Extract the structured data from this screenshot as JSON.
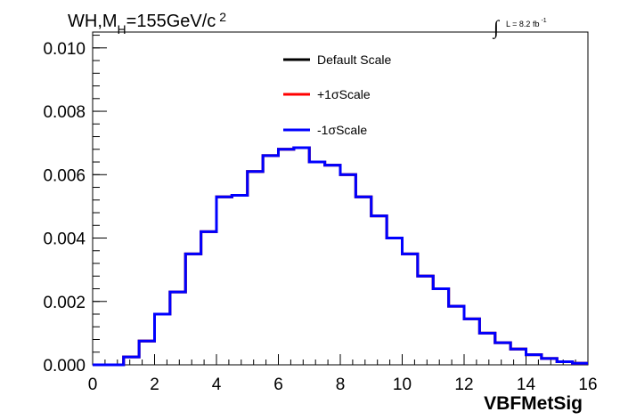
{
  "chart_data": {
    "type": "line",
    "title_parts": {
      "wh": "WH,M",
      "sub": "H",
      "mass": "=155GeV/c",
      "sup": "2"
    },
    "lumi_parts": {
      "integral": "∫",
      "text": "L = 8.2 fb",
      "sup": "-1"
    },
    "xlabel": "VBFMetSig",
    "ylabel": "",
    "xlim": [
      0,
      16
    ],
    "ylim": [
      0,
      0.0105
    ],
    "x_ticks": [
      "0",
      "2",
      "4",
      "6",
      "8",
      "10",
      "12",
      "14",
      "16"
    ],
    "y_ticks": [
      "0.000",
      "0.002",
      "0.004",
      "0.006",
      "0.008",
      "0.010"
    ],
    "grid": false,
    "legend_position": "top-center",
    "bin_edges": [
      0,
      0.5,
      1,
      1.5,
      2,
      2.5,
      3,
      3.5,
      4,
      4.5,
      5,
      5.5,
      6,
      6.5,
      7,
      7.5,
      8,
      8.5,
      9,
      9.5,
      10,
      10.5,
      11,
      11.5,
      12,
      12.5,
      13,
      13.5,
      14,
      14.5,
      15,
      15.5,
      16
    ],
    "bin_edges_note": "",
    "series": [
      {
        "name": "Default Scale",
        "color": "#000000",
        "values": [
          0,
          0,
          0.00025,
          0.00075,
          0.0016,
          0.0023,
          0.0035,
          0.0042,
          0.0053,
          0.00535,
          0.0061,
          0.0066,
          0.0068,
          0.00685,
          0.0064,
          0.0063,
          0.006,
          0.0053,
          0.0047,
          0.004,
          0.0035,
          0.0028,
          0.0024,
          0.00185,
          0.00145,
          0.001,
          0.0007,
          0.0005,
          0.00032,
          0.0002,
          0.0001,
          5e-05
        ]
      },
      {
        "name": "+1σScale",
        "color": "#ff0000",
        "values": [
          0,
          0,
          0.00025,
          0.00075,
          0.0016,
          0.0023,
          0.0035,
          0.0042,
          0.0053,
          0.00535,
          0.0061,
          0.0066,
          0.0068,
          0.00685,
          0.0064,
          0.0063,
          0.006,
          0.0053,
          0.0047,
          0.004,
          0.0035,
          0.0028,
          0.0024,
          0.00185,
          0.00145,
          0.001,
          0.0007,
          0.0005,
          0.00032,
          0.0002,
          0.0001,
          5e-05
        ]
      },
      {
        "name": "-1σScale",
        "color": "#0000ff",
        "values": [
          0,
          0,
          0.00025,
          0.00075,
          0.0016,
          0.0023,
          0.0035,
          0.0042,
          0.0053,
          0.00535,
          0.0061,
          0.0066,
          0.0068,
          0.00685,
          0.0064,
          0.0063,
          0.006,
          0.0053,
          0.0047,
          0.004,
          0.0035,
          0.0028,
          0.0024,
          0.00185,
          0.00145,
          0.001,
          0.0007,
          0.0005,
          0.00032,
          0.0002,
          0.0001,
          5e-05
        ]
      }
    ]
  }
}
